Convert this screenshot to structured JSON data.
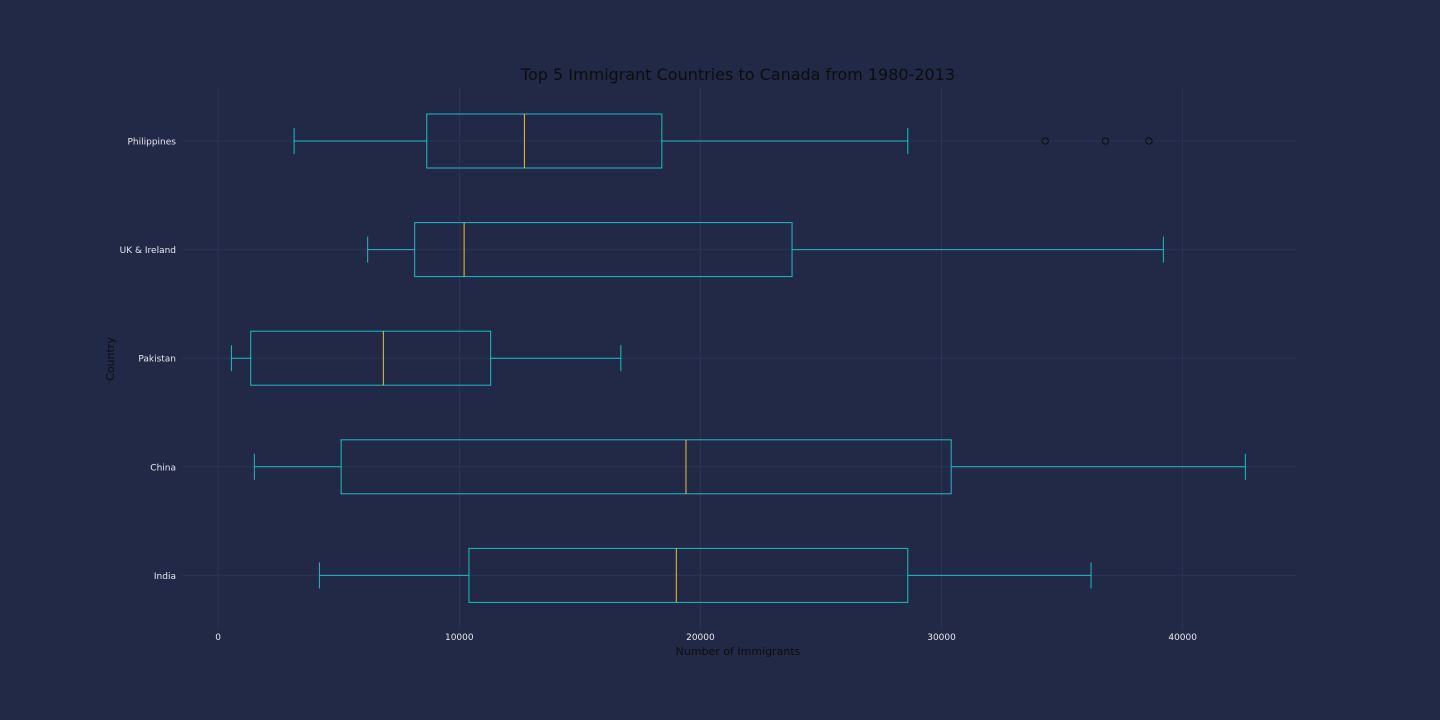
{
  "chart_data": {
    "type": "box",
    "orientation": "horizontal",
    "title": "Top 5 Immigrant Countries to Canada from 1980-2013",
    "xlabel": "Number of Immigrants",
    "ylabel": "Country",
    "xlim": [
      -1500,
      44700
    ],
    "xticks": [
      0,
      10000,
      20000,
      30000,
      40000
    ],
    "xtick_labels": [
      "0",
      "10000",
      "20000",
      "30000",
      "40000"
    ],
    "grid": true,
    "colors": {
      "background": "#212946",
      "grid": "#2A3459",
      "box": "#18C0C4",
      "median": "#F2C12E",
      "flier": "#0d0d0d",
      "tick_text": "#e8e8ee",
      "axis_text": "#0d0d0d"
    },
    "categories": [
      "India",
      "China",
      "Pakistan",
      "UK & Ireland",
      "Philippines"
    ],
    "boxes": [
      {
        "category": "India",
        "whisker_low": 4200,
        "q1": 10400,
        "median": 19000,
        "q3": 28600,
        "whisker_high": 36200,
        "fliers": []
      },
      {
        "category": "China",
        "whisker_low": 1500,
        "q1": 5100,
        "median": 19400,
        "q3": 30400,
        "whisker_high": 42600,
        "fliers": []
      },
      {
        "category": "Pakistan",
        "whisker_low": 550,
        "q1": 1350,
        "median": 6850,
        "q3": 11300,
        "whisker_high": 16700,
        "fliers": []
      },
      {
        "category": "UK & Ireland",
        "whisker_low": 6200,
        "q1": 8150,
        "median": 10200,
        "q3": 23800,
        "whisker_high": 39200,
        "fliers": []
      },
      {
        "category": "Philippines",
        "whisker_low": 3150,
        "q1": 8650,
        "median": 12700,
        "q3": 18400,
        "whisker_high": 28600,
        "fliers": [
          34300,
          36800,
          38600
        ]
      }
    ]
  }
}
